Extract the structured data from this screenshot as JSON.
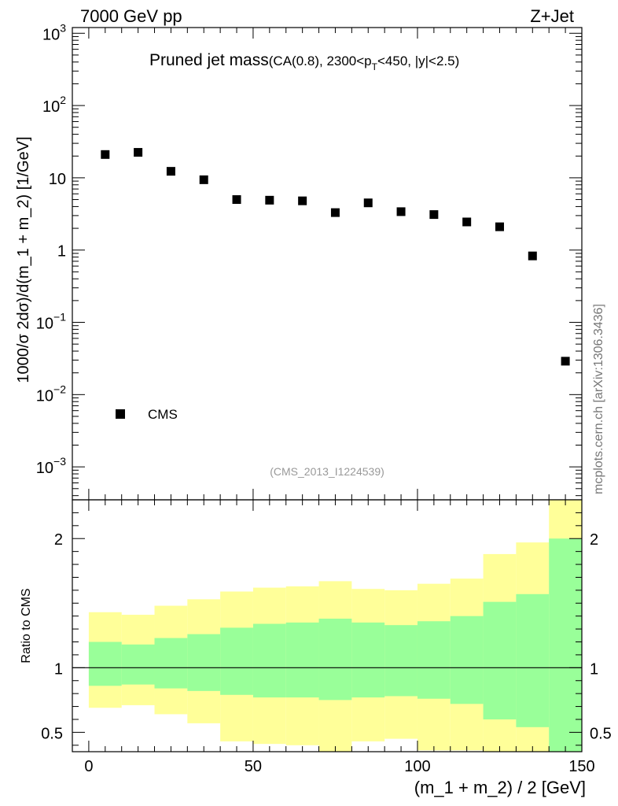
{
  "header": {
    "left_label": "7000 GeV pp",
    "right_label": "Z+Jet",
    "side_label": "mcplots.cern.ch [arXiv:1306.3436]"
  },
  "colors": {
    "band_inner": "#99ff99",
    "band_outer": "#ffff99",
    "marker": "#000000",
    "ref_id": "#999999"
  },
  "chart_data": [
    {
      "type": "scatter",
      "title": "Pruned jet mass",
      "subtitle_parts": [
        "CA(0.8), 2300<p",
        "T",
        "<450, |y|<2.5)"
      ],
      "subtitle_open": "(",
      "ref_id": "(CMS_2013_I1224539)",
      "ylabel": "1000/σ 2dσ)/d(m_1 + m_2) [1/GeV]",
      "yscale": "log",
      "ylim": [
        0.00035,
        1200
      ],
      "y_ticks": [
        {
          "value": 0.001,
          "base": "10",
          "exp": "−3"
        },
        {
          "value": 0.01,
          "base": "10",
          "exp": "−2"
        },
        {
          "value": 0.1,
          "base": "10",
          "exp": "−1"
        },
        {
          "value": 1,
          "base": "1",
          "exp": ""
        },
        {
          "value": 10,
          "base": "10",
          "exp": ""
        },
        {
          "value": 100,
          "base": "10",
          "exp": "2"
        },
        {
          "value": 1000,
          "base": "10",
          "exp": "3"
        }
      ],
      "xlim": [
        -5,
        150
      ],
      "legend": {
        "position": "bottom-left",
        "entries": [
          "CMS"
        ]
      },
      "series": [
        {
          "name": "CMS",
          "x": [
            5,
            15,
            25,
            35,
            45,
            55,
            65,
            75,
            85,
            95,
            105,
            115,
            125,
            135,
            145
          ],
          "values": [
            21,
            22.5,
            12.3,
            9.4,
            5.0,
            4.9,
            4.8,
            3.3,
            4.5,
            3.4,
            3.1,
            2.45,
            2.1,
            0.83,
            0.029
          ]
        }
      ]
    },
    {
      "type": "area",
      "ylabel": "Ratio to CMS",
      "xlabel": "(m_1 + m_2) / 2 [GeV]",
      "xlim": [
        -5,
        150
      ],
      "ylim": [
        0.35,
        2.3
      ],
      "x_ticks": [
        0,
        50,
        100,
        150
      ],
      "y_ticks": [
        0.5,
        1,
        2
      ],
      "reference_line": 1,
      "bin_edges": [
        0,
        10,
        20,
        30,
        40,
        50,
        60,
        70,
        80,
        90,
        100,
        110,
        120,
        130,
        140,
        150
      ],
      "series": [
        {
          "name": "outer band",
          "lower": [
            0.69,
            0.71,
            0.64,
            0.57,
            0.43,
            0.41,
            0.4,
            0.35,
            0.43,
            0.45,
            0.36,
            0.36,
            0.35,
            0.35,
            0.35
          ],
          "upper": [
            1.43,
            1.41,
            1.48,
            1.53,
            1.59,
            1.62,
            1.63,
            1.67,
            1.61,
            1.6,
            1.65,
            1.69,
            1.88,
            1.97,
            2.3
          ]
        },
        {
          "name": "inner band",
          "lower": [
            0.86,
            0.87,
            0.84,
            0.82,
            0.79,
            0.77,
            0.77,
            0.75,
            0.77,
            0.78,
            0.76,
            0.72,
            0.6,
            0.54,
            0.35
          ],
          "upper": [
            1.2,
            1.18,
            1.23,
            1.26,
            1.31,
            1.34,
            1.35,
            1.38,
            1.35,
            1.33,
            1.36,
            1.4,
            1.51,
            1.57,
            2.0
          ]
        }
      ]
    }
  ]
}
